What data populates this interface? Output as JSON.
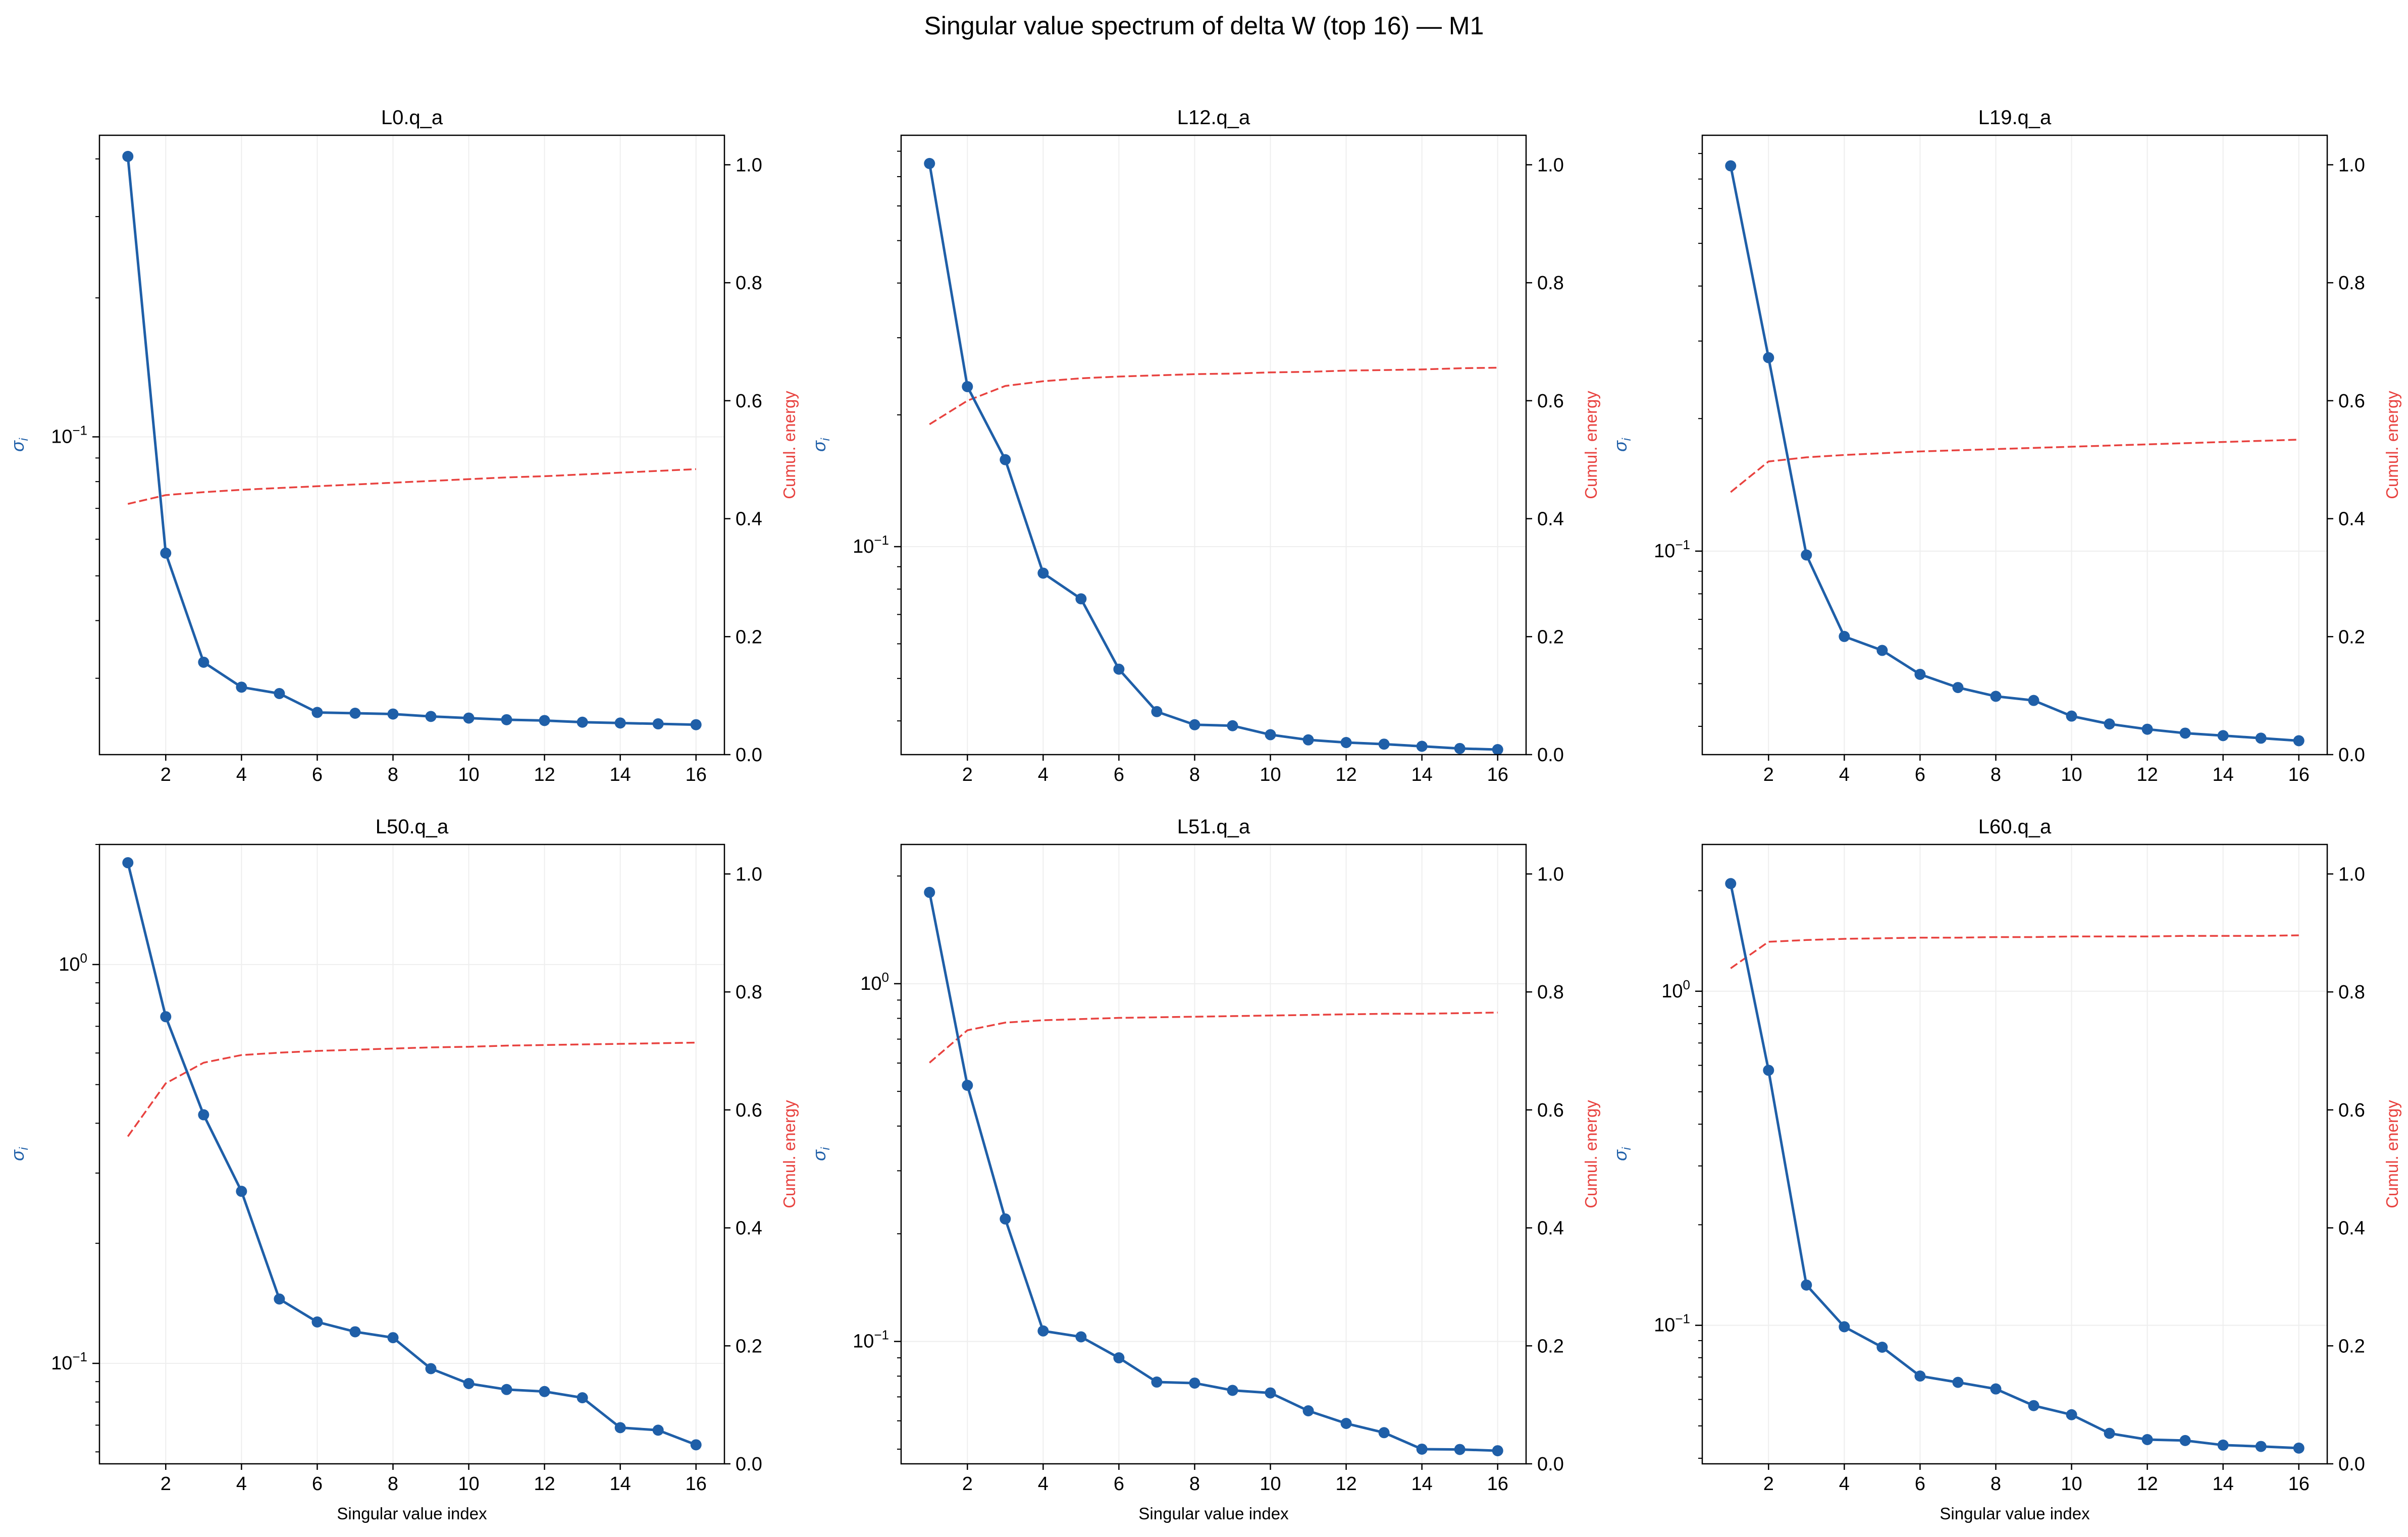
{
  "figure": {
    "suptitle": "Singular value spectrum of delta W (top 16) — M1",
    "xlabel": "Singular value index",
    "ylabel_left": "σ_i",
    "ylabel_right": "Cumul. energy"
  },
  "colors": {
    "sigma": "#1f5fa8",
    "energy": "#e8423f",
    "grid": "#eeeeee",
    "axis": "#000000"
  },
  "chart_data": [
    {
      "type": "line",
      "title": "L0.q_a",
      "x": [
        1,
        2,
        3,
        4,
        5,
        6,
        7,
        8,
        9,
        10,
        11,
        12,
        13,
        14,
        15,
        16
      ],
      "xticks": [
        2,
        4,
        6,
        8,
        10,
        12,
        14,
        16
      ],
      "y_scale": "log",
      "ylim": [
        0.0205,
        0.45
      ],
      "ylim_right": [
        0,
        1.05
      ],
      "yticks_right": [
        0.0,
        0.2,
        0.4,
        0.6,
        0.8,
        1.0
      ],
      "ylabel": "σ_i",
      "ylabel_right": "Cumul. energy",
      "xlabel": "",
      "grid": true,
      "series": [
        {
          "axis": "left",
          "style": "solid-markers",
          "values": [
            0.405,
            0.056,
            0.0325,
            0.0287,
            0.0278,
            0.0253,
            0.0252,
            0.0251,
            0.0248,
            0.0246,
            0.0244,
            0.0243,
            0.0241,
            0.024,
            0.0239,
            0.0238
          ]
        },
        {
          "axis": "right",
          "style": "dashed",
          "values": [
            0.425,
            0.44,
            0.445,
            0.449,
            0.452,
            0.455,
            0.458,
            0.461,
            0.464,
            0.467,
            0.47,
            0.472,
            0.475,
            0.478,
            0.481,
            0.484
          ]
        }
      ]
    },
    {
      "type": "line",
      "title": "L12.q_a",
      "x": [
        1,
        2,
        3,
        4,
        5,
        6,
        7,
        8,
        9,
        10,
        11,
        12,
        13,
        14,
        15,
        16
      ],
      "xticks": [
        2,
        4,
        6,
        8,
        10,
        12,
        14,
        16
      ],
      "y_scale": "log",
      "ylim": [
        0.0335,
        0.87
      ],
      "ylim_right": [
        0,
        1.05
      ],
      "yticks_right": [
        0.0,
        0.2,
        0.4,
        0.6,
        0.8,
        1.0
      ],
      "ylabel": "σ_i",
      "ylabel_right": "Cumul. energy",
      "xlabel": "",
      "grid": true,
      "series": [
        {
          "axis": "left",
          "style": "solid-markers",
          "values": [
            0.75,
            0.232,
            0.158,
            0.087,
            0.076,
            0.0525,
            0.042,
            0.0392,
            0.039,
            0.0372,
            0.0362,
            0.0357,
            0.0354,
            0.035,
            0.0346,
            0.0344
          ]
        },
        {
          "axis": "right",
          "style": "dashed",
          "values": [
            0.56,
            0.6,
            0.625,
            0.633,
            0.638,
            0.641,
            0.643,
            0.645,
            0.646,
            0.648,
            0.649,
            0.651,
            0.652,
            0.653,
            0.655,
            0.656
          ]
        }
      ]
    },
    {
      "type": "line",
      "title": "L19.q_a",
      "x": [
        1,
        2,
        3,
        4,
        5,
        6,
        7,
        8,
        9,
        10,
        11,
        12,
        13,
        14,
        15,
        16
      ],
      "xticks": [
        2,
        4,
        6,
        8,
        10,
        12,
        14,
        16
      ],
      "y_scale": "log",
      "ylim": [
        0.0345,
        0.88
      ],
      "ylim_right": [
        0,
        1.05
      ],
      "yticks_right": [
        0.0,
        0.2,
        0.4,
        0.6,
        0.8,
        1.0
      ],
      "ylabel": "σ_i",
      "ylabel_right": "Cumul. energy",
      "xlabel": "",
      "grid": true,
      "series": [
        {
          "axis": "left",
          "style": "solid-markers",
          "values": [
            0.75,
            0.275,
            0.098,
            0.064,
            0.0595,
            0.0525,
            0.049,
            0.0468,
            0.0458,
            0.0422,
            0.0405,
            0.0394,
            0.0386,
            0.0381,
            0.0376,
            0.0371
          ]
        },
        {
          "axis": "right",
          "style": "dashed",
          "values": [
            0.445,
            0.497,
            0.504,
            0.508,
            0.511,
            0.514,
            0.516,
            0.518,
            0.52,
            0.522,
            0.524,
            0.526,
            0.528,
            0.53,
            0.532,
            0.534
          ]
        }
      ]
    },
    {
      "type": "line",
      "title": "L50.q_a",
      "x": [
        1,
        2,
        3,
        4,
        5,
        6,
        7,
        8,
        9,
        10,
        11,
        12,
        13,
        14,
        15,
        16
      ],
      "xticks": [
        2,
        4,
        6,
        8,
        10,
        12,
        14,
        16
      ],
      "y_scale": "log",
      "ylim": [
        0.056,
        2.0
      ],
      "ylim_right": [
        0,
        1.05
      ],
      "yticks_right": [
        0.0,
        0.2,
        0.4,
        0.6,
        0.8,
        1.0
      ],
      "ylabel": "σ_i",
      "ylabel_right": "Cumul. energy",
      "xlabel": "Singular value index",
      "grid": true,
      "series": [
        {
          "axis": "left",
          "style": "solid-markers",
          "values": [
            1.8,
            0.74,
            0.42,
            0.27,
            0.145,
            0.127,
            0.12,
            0.116,
            0.097,
            0.089,
            0.086,
            0.085,
            0.082,
            0.069,
            0.068,
            0.0625
          ]
        },
        {
          "axis": "right",
          "style": "dashed",
          "values": [
            0.555,
            0.645,
            0.68,
            0.693,
            0.697,
            0.7,
            0.702,
            0.704,
            0.706,
            0.707,
            0.709,
            0.71,
            0.711,
            0.712,
            0.713,
            0.714
          ]
        }
      ]
    },
    {
      "type": "line",
      "title": "L51.q_a",
      "x": [
        1,
        2,
        3,
        4,
        5,
        6,
        7,
        8,
        9,
        10,
        11,
        12,
        13,
        14,
        15,
        16
      ],
      "xticks": [
        2,
        4,
        6,
        8,
        10,
        12,
        14,
        16
      ],
      "y_scale": "log",
      "ylim": [
        0.0455,
        2.45
      ],
      "ylim_right": [
        0,
        1.05
      ],
      "yticks_right": [
        0.0,
        0.2,
        0.4,
        0.6,
        0.8,
        1.0
      ],
      "ylabel": "σ_i",
      "ylabel_right": "Cumul. energy",
      "xlabel": "Singular value index",
      "grid": true,
      "series": [
        {
          "axis": "left",
          "style": "solid-markers",
          "values": [
            1.8,
            0.52,
            0.22,
            0.107,
            0.103,
            0.09,
            0.077,
            0.0765,
            0.073,
            0.0718,
            0.064,
            0.059,
            0.0556,
            0.05,
            0.0499,
            0.0495
          ]
        },
        {
          "axis": "right",
          "style": "dashed",
          "values": [
            0.68,
            0.735,
            0.748,
            0.752,
            0.754,
            0.756,
            0.757,
            0.758,
            0.759,
            0.76,
            0.761,
            0.762,
            0.763,
            0.763,
            0.764,
            0.765
          ]
        }
      ]
    },
    {
      "type": "line",
      "title": "L60.q_a",
      "x": [
        1,
        2,
        3,
        4,
        5,
        6,
        7,
        8,
        9,
        10,
        11,
        12,
        13,
        14,
        15,
        16
      ],
      "xticks": [
        2,
        4,
        6,
        8,
        10,
        12,
        14,
        16
      ],
      "y_scale": "log",
      "ylim": [
        0.0385,
        2.75
      ],
      "ylim_right": [
        0,
        1.05
      ],
      "yticks_right": [
        0.0,
        0.2,
        0.4,
        0.6,
        0.8,
        1.0
      ],
      "ylabel": "σ_i",
      "ylabel_right": "Cumul. energy",
      "xlabel": "Singular value index",
      "grid": true,
      "series": [
        {
          "axis": "left",
          "style": "solid-markers",
          "values": [
            2.1,
            0.58,
            0.132,
            0.099,
            0.086,
            0.0705,
            0.0675,
            0.0645,
            0.0575,
            0.054,
            0.0475,
            0.0455,
            0.0452,
            0.0438,
            0.0434,
            0.0429
          ]
        },
        {
          "axis": "right",
          "style": "dashed",
          "values": [
            0.84,
            0.885,
            0.888,
            0.89,
            0.891,
            0.892,
            0.892,
            0.893,
            0.893,
            0.894,
            0.894,
            0.894,
            0.895,
            0.895,
            0.895,
            0.896
          ]
        }
      ]
    }
  ]
}
